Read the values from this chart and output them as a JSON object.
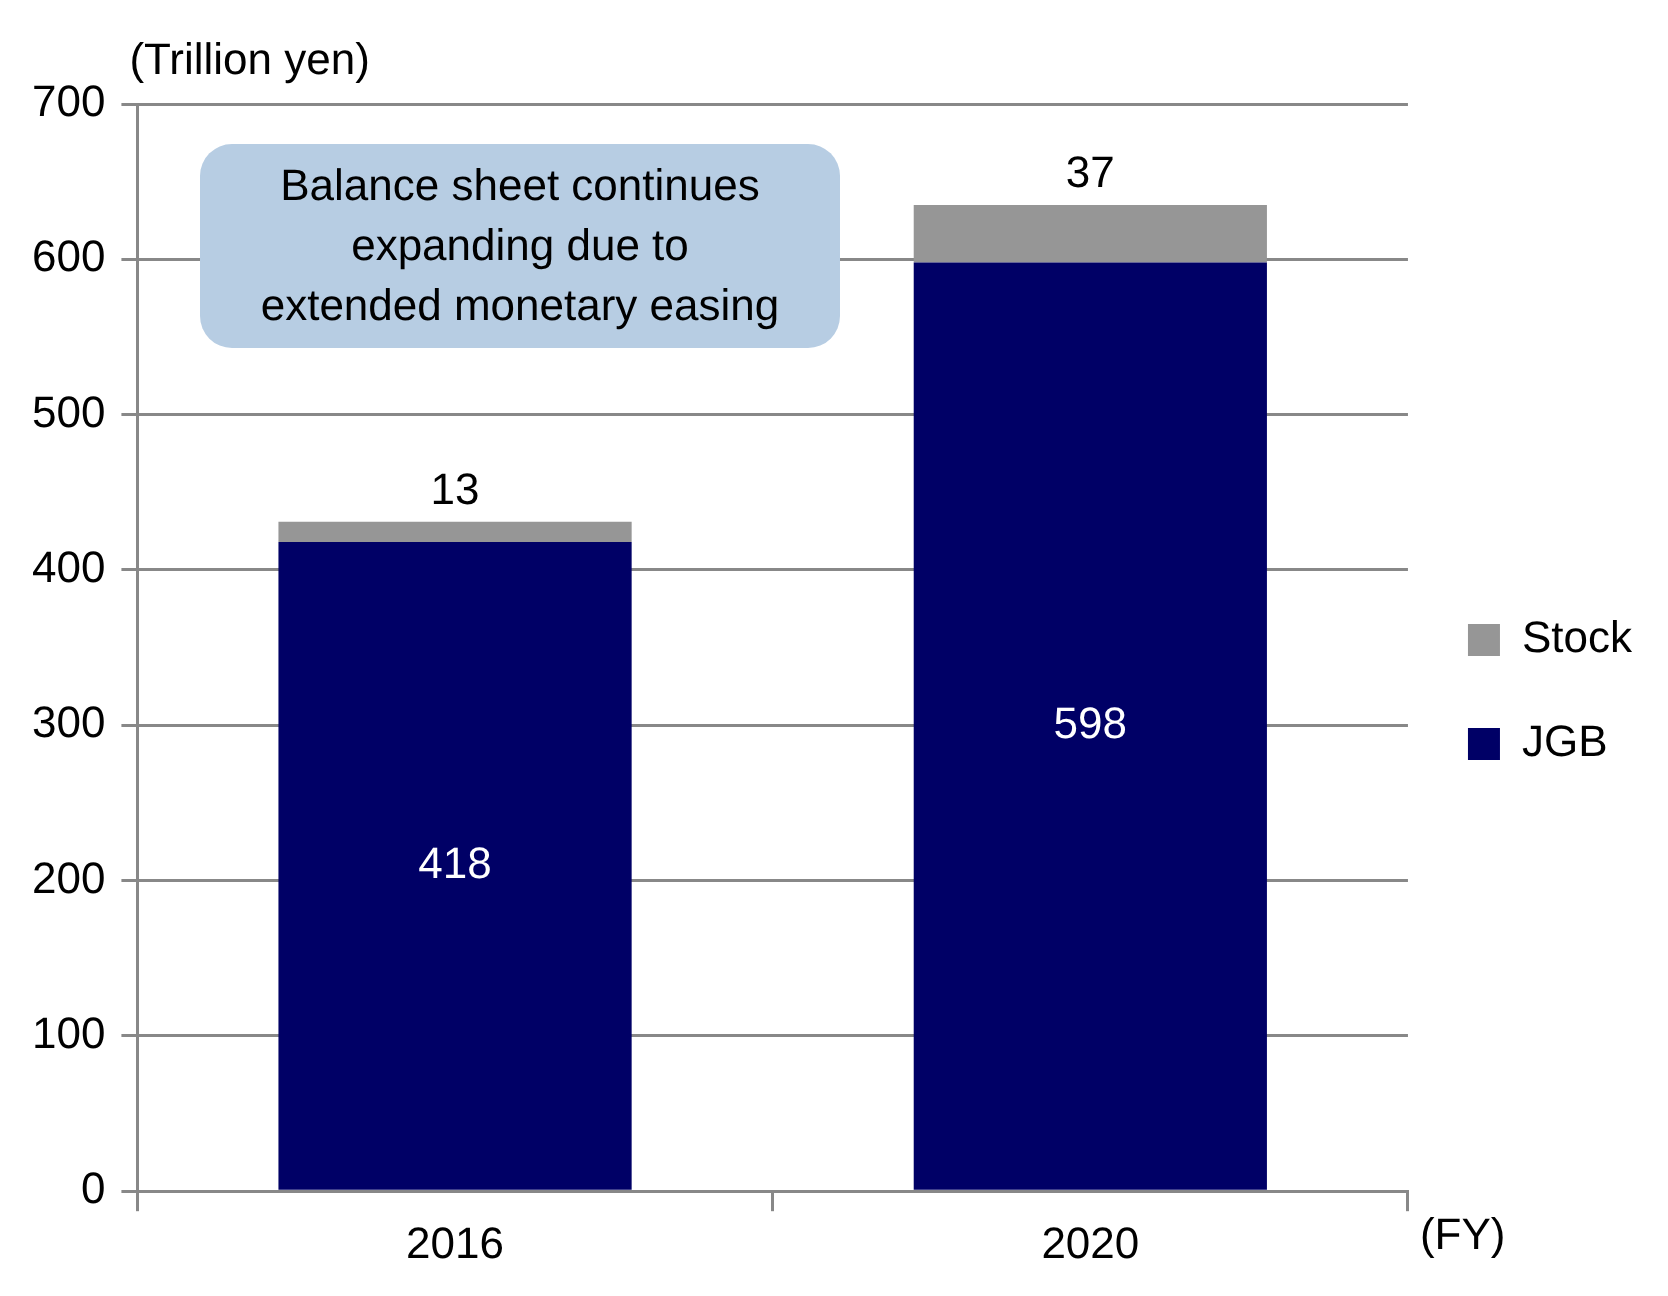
{
  "chart_data": {
    "type": "bar",
    "ylabel": "(Trillion yen)",
    "xlabel": "(FY)",
    "categories": [
      "2016",
      "2020"
    ],
    "stacked": true,
    "series": [
      {
        "name": "JGB",
        "color": "#000066",
        "values": [
          418,
          598
        ]
      },
      {
        "name": "Stock",
        "color": "#969696",
        "values": [
          13,
          37
        ]
      }
    ],
    "ylim": [
      0,
      700
    ],
    "yticks": [
      0,
      100,
      200,
      300,
      400,
      500,
      600,
      700
    ],
    "grid": "y",
    "legend": "right",
    "data_labels": true,
    "annotations": [
      "Balance sheet continues expanding due to extended monetary easing"
    ]
  }
}
